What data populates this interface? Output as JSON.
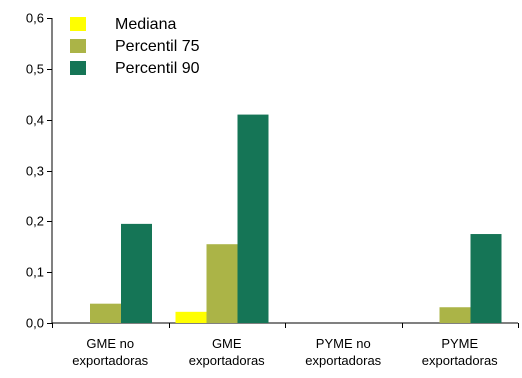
{
  "chart_data": {
    "type": "bar",
    "categories": [
      [
        "GME no",
        "exportadoras"
      ],
      [
        "GME",
        "exportadoras"
      ],
      [
        "PYME no",
        "exportadoras"
      ],
      [
        "PYME",
        "exportadoras"
      ]
    ],
    "series": [
      {
        "name": "Mediana",
        "color": "#ffff00",
        "values": [
          0.0,
          0.022,
          0.0,
          0.0
        ]
      },
      {
        "name": "Percentil 75",
        "color": "#abb447",
        "values": [
          0.038,
          0.155,
          0.0,
          0.031
        ]
      },
      {
        "name": "Percentil 90",
        "color": "#157556",
        "values": [
          0.195,
          0.41,
          0.0,
          0.175
        ]
      }
    ],
    "y_ticks": [
      "0,0",
      "0,1",
      "0,2",
      "0,3",
      "0,4",
      "0,5",
      "0,6"
    ],
    "ylim": [
      0,
      0.6
    ],
    "grid": false,
    "legend_position": "top-left",
    "title": "",
    "xlabel": "",
    "ylabel": ""
  }
}
